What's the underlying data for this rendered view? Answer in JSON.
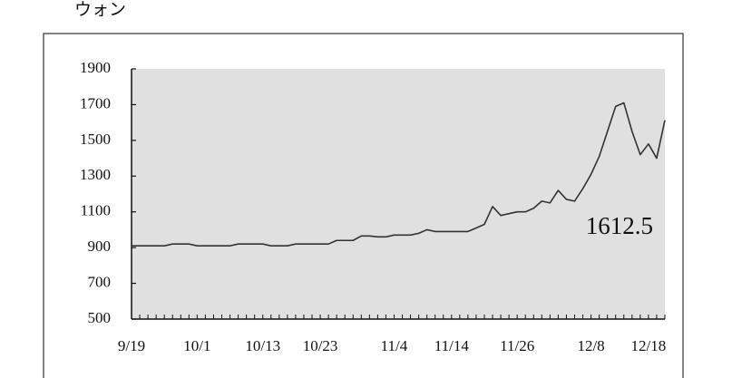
{
  "chart_data": {
    "type": "line",
    "title": "ウォン",
    "annotation": "1612.5",
    "categories": [
      "9/19",
      null,
      null,
      null,
      null,
      null,
      null,
      null,
      "10/1",
      null,
      null,
      null,
      null,
      null,
      null,
      null,
      "10/13",
      null,
      null,
      null,
      null,
      null,
      null,
      "10/23",
      null,
      null,
      null,
      null,
      null,
      null,
      null,
      null,
      "11/4",
      null,
      null,
      null,
      null,
      null,
      null,
      "11/14",
      null,
      null,
      null,
      null,
      null,
      null,
      null,
      "11/26",
      null,
      null,
      null,
      null,
      null,
      null,
      null,
      null,
      "12/8",
      null,
      null,
      null,
      null,
      null,
      null,
      "12/18",
      null,
      null
    ],
    "series": [
      {
        "name": "ウォン",
        "color": "#333333",
        "values": [
          910,
          910,
          910,
          910,
          910,
          920,
          920,
          920,
          910,
          910,
          910,
          910,
          910,
          920,
          920,
          920,
          920,
          910,
          910,
          910,
          920,
          920,
          920,
          920,
          920,
          940,
          940,
          940,
          965,
          965,
          960,
          960,
          970,
          970,
          970,
          980,
          1000,
          990,
          990,
          990,
          990,
          990,
          1010,
          1030,
          1130,
          1080,
          1090,
          1100,
          1100,
          1120,
          1160,
          1150,
          1220,
          1170,
          1160,
          1230,
          1310,
          1410,
          1550,
          1690,
          1710,
          1550,
          1420,
          1480,
          1400,
          1612.5
        ]
      }
    ],
    "ylim": [
      500,
      1900
    ],
    "yticks": [
      500,
      700,
      900,
      1100,
      1300,
      1500,
      1700,
      1900
    ]
  }
}
